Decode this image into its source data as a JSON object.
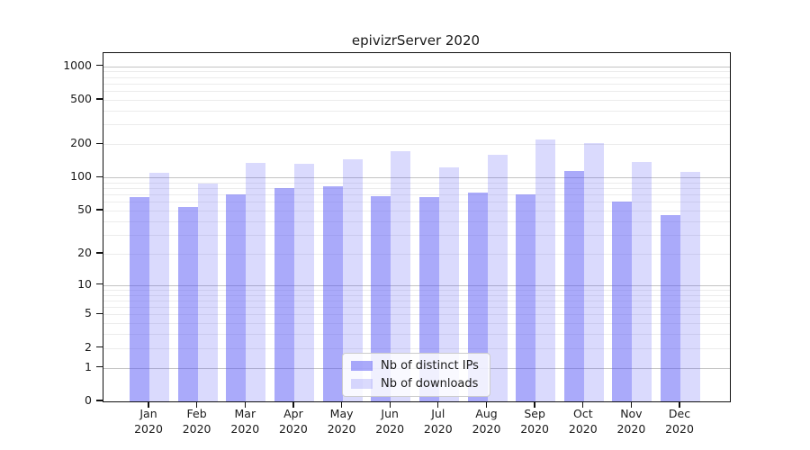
{
  "chart_data": {
    "type": "bar",
    "title": "epivizrServer 2020",
    "yscale": "log1p",
    "grid": true,
    "legend_position": "inside-bottom-center",
    "categories": [
      "Jan",
      "Feb",
      "Mar",
      "Apr",
      "May",
      "Jun",
      "Jul",
      "Aug",
      "Sep",
      "Oct",
      "Nov",
      "Dec"
    ],
    "year": "2020",
    "series": [
      {
        "name": "Nb of distinct IPs",
        "color": "#5555f5",
        "alpha": 0.5,
        "rendered_color": "#aaaaf8",
        "values": [
          66,
          54,
          70,
          80,
          84,
          68,
          67,
          73,
          70,
          115,
          60,
          46
        ]
      },
      {
        "name": "Nb of downloads",
        "color": "#5555f5",
        "alpha": 0.22,
        "rendered_color": "#d9d9f8",
        "values": [
          110,
          88,
          135,
          132,
          145,
          173,
          124,
          160,
          222,
          206,
          137,
          112
        ]
      }
    ],
    "yticks": [
      0,
      1,
      2,
      5,
      10,
      20,
      50,
      100,
      200,
      500,
      1000
    ],
    "ylim": [
      0,
      1300
    ],
    "xlabel": "",
    "ylabel": ""
  }
}
